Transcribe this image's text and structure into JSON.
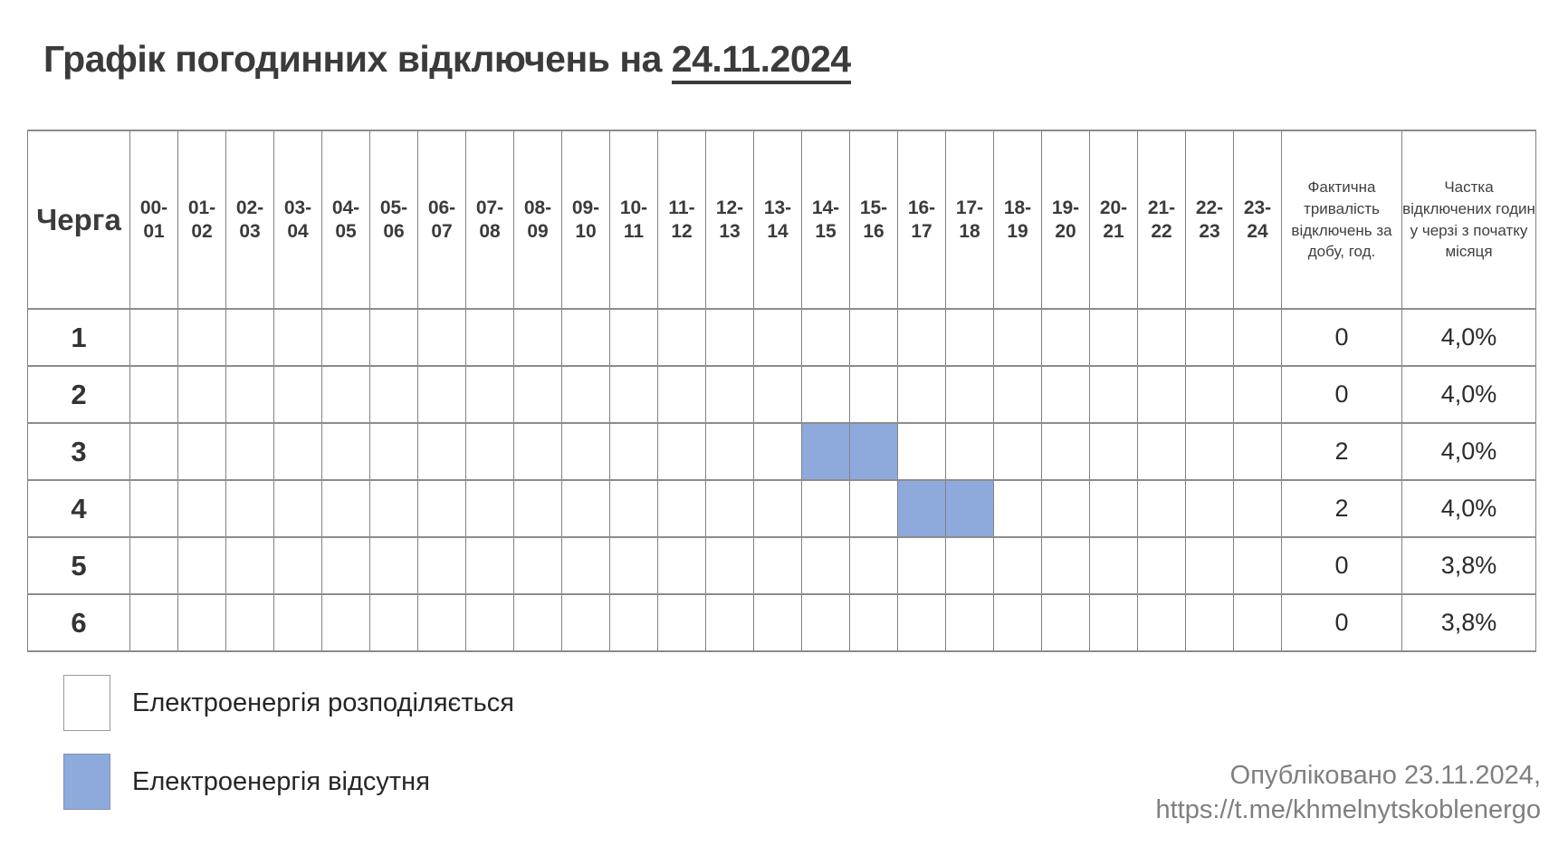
{
  "title": {
    "prefix": "Графік погодинних відключень на ",
    "date": "24.11.2024"
  },
  "table": {
    "queue_header": "Черга",
    "duration_header": "Фактична тривалість відключень за добу, год.",
    "share_header": "Частка відключених годин у черзі з початку місяця"
  },
  "chart_data": {
    "type": "heatmap",
    "title": "Графік погодинних відключень на 24.11.2024",
    "x_labels": [
      "00-01",
      "01-02",
      "02-03",
      "03-04",
      "04-05",
      "05-06",
      "06-07",
      "07-08",
      "08-09",
      "09-10",
      "10-11",
      "11-12",
      "12-13",
      "13-14",
      "14-15",
      "15-16",
      "16-17",
      "17-18",
      "18-19",
      "19-20",
      "20-21",
      "21-22",
      "22-23",
      "23-24"
    ],
    "y_labels": [
      "1",
      "2",
      "3",
      "4",
      "5",
      "6"
    ],
    "cell_states": {
      "white": "електроенергія розподіляється",
      "blue": "електроенергія відсутня"
    },
    "rows": [
      {
        "queue": "1",
        "outage_hours": [],
        "duration_hours": "0",
        "month_share": "4,0%"
      },
      {
        "queue": "2",
        "outage_hours": [],
        "duration_hours": "0",
        "month_share": "4,0%"
      },
      {
        "queue": "3",
        "outage_hours": [
          "14-15",
          "15-16"
        ],
        "duration_hours": "2",
        "month_share": "4,0%"
      },
      {
        "queue": "4",
        "outage_hours": [
          "16-17",
          "17-18"
        ],
        "duration_hours": "2",
        "month_share": "4,0%"
      },
      {
        "queue": "5",
        "outage_hours": [],
        "duration_hours": "0",
        "month_share": "3,8%"
      },
      {
        "queue": "6",
        "outage_hours": [],
        "duration_hours": "0",
        "month_share": "3,8%"
      }
    ]
  },
  "legend": [
    {
      "label": "Електроенергія розподіляється",
      "color": "#ffffff"
    },
    {
      "label": "Електроенергія відсутня",
      "color": "#8ea9db"
    }
  ],
  "footer": {
    "published": "Опубліковано 23.11.2024,",
    "link": "https://t.me/khmelnytskoblenergo"
  },
  "colors": {
    "outage_fill": "#8ea9db",
    "grid_border": "#828282",
    "title_text": "#3b3b3b",
    "footer_text": "#7f7f7f"
  }
}
